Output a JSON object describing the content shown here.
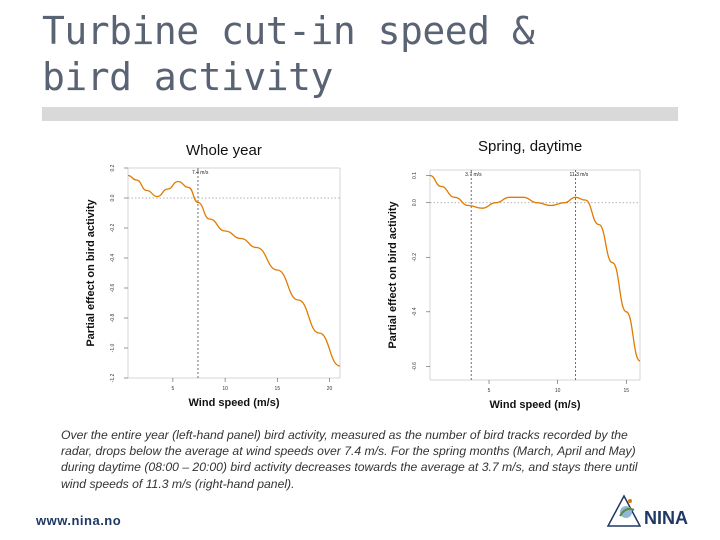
{
  "slide": {
    "title": "Turbine cut-in speed & bird activity",
    "caption": "Over the entire year (left-hand panel) bird activity, measured as the number of bird tracks recorded by the radar, drops below the average at wind speeds over 7.4 m/s. For the spring months (March, April and May) during daytime (08:00 – 20:00) bird activity decreases towards the average at 3.7 m/s, and stays there until wind speeds of 11.3 m/s (right-hand panel).",
    "footer_url": "www.nina.no",
    "logo_text": "NINA"
  },
  "colors": {
    "title": "#5a6374",
    "curve": "#e07b00",
    "footer": "#1f3864"
  },
  "chart_data": [
    {
      "type": "line",
      "panel_heading": "Whole year",
      "xlabel": "Wind speed (m/s)",
      "ylabel": "Partial effect on bird activity",
      "xlim": [
        0.7,
        21
      ],
      "ylim": [
        -1.2,
        0.2
      ],
      "x_ticks": [
        5,
        10,
        15,
        20
      ],
      "x_tick_labels": [
        "5",
        "10",
        "15",
        "20"
      ],
      "y_ticks": [
        0.2,
        0.0,
        -0.2,
        -0.4,
        -0.6,
        -0.8,
        -1.0,
        -1.2
      ],
      "y_tick_labels": [
        "0.2",
        "0.0",
        "-0.2",
        "-0.4",
        "-0.6",
        "-0.8",
        "-1.0",
        "-1.2"
      ],
      "reference_line": {
        "y": 0.0,
        "style": "dotted"
      },
      "vertical_lines": [
        {
          "x": 7.4,
          "label": "7.4 m/s"
        }
      ],
      "series": [
        {
          "x": [
            0.7,
            1.5,
            2.5,
            3.5,
            4.5,
            5.5,
            6.5,
            7.4,
            8.5,
            10,
            11.5,
            13,
            15,
            17,
            19,
            21
          ],
          "values": [
            0.15,
            0.12,
            0.05,
            0.01,
            0.06,
            0.11,
            0.07,
            -0.03,
            -0.14,
            -0.22,
            -0.27,
            -0.33,
            -0.48,
            -0.68,
            -0.9,
            -1.12
          ]
        }
      ]
    },
    {
      "type": "line",
      "panel_heading": "Spring, daytime",
      "xlabel": "Wind speed (m/s)",
      "ylabel": "Partial effect on bird activity",
      "xlim": [
        0.7,
        16
      ],
      "ylim": [
        -0.65,
        0.12
      ],
      "x_ticks": [
        5,
        10,
        15
      ],
      "x_tick_labels": [
        "5",
        "10",
        "15"
      ],
      "y_ticks": [
        0.1,
        0.0,
        -0.2,
        -0.4,
        -0.6
      ],
      "y_tick_labels": [
        "0.1",
        "0.0",
        "-0.2",
        "-0.4",
        "-0.6"
      ],
      "reference_line": {
        "y": 0.0,
        "style": "dotted"
      },
      "vertical_lines": [
        {
          "x": 3.7,
          "label": "3.7 m/s"
        },
        {
          "x": 11.3,
          "label": "11.3 m/s"
        }
      ],
      "series": [
        {
          "x": [
            0.7,
            1.5,
            2.5,
            3.5,
            4.5,
            5.5,
            6.5,
            7.5,
            8.5,
            9.5,
            10.5,
            11.3,
            12,
            13,
            14,
            15,
            16
          ],
          "values": [
            0.1,
            0.06,
            0.02,
            -0.01,
            -0.02,
            0.0,
            0.02,
            0.02,
            0.0,
            -0.01,
            0.0,
            0.02,
            0.01,
            -0.08,
            -0.22,
            -0.4,
            -0.58
          ]
        }
      ]
    }
  ]
}
